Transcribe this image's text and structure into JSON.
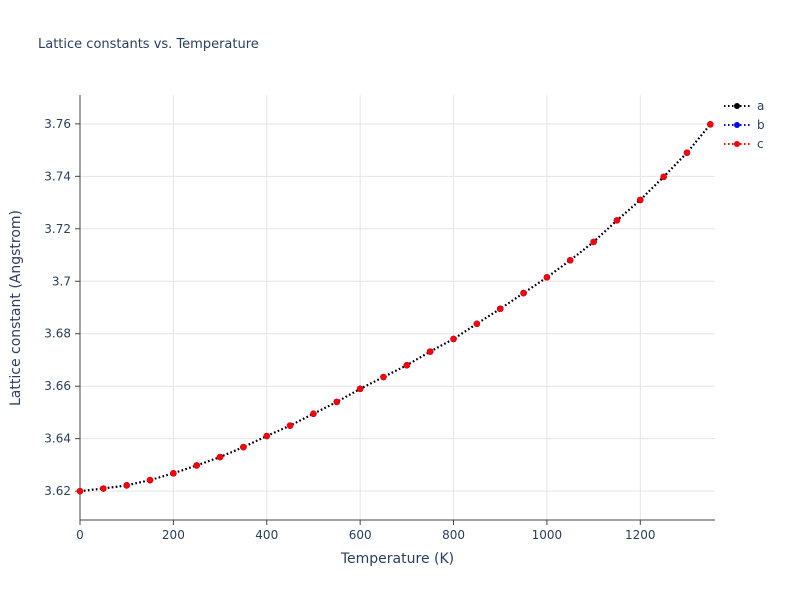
{
  "chart": {
    "title": "Lattice constants vs. Temperature",
    "xlabel": "Temperature (K)",
    "ylabel": "Lattice constant (Angstrom)"
  },
  "colors": {
    "background": "#ffffff",
    "text": "#2a3f5f",
    "grid": "#e5e5e5",
    "axis": "#444444"
  },
  "chart_data": {
    "type": "line",
    "title": "Lattice constants vs. Temperature",
    "xlabel": "Temperature (K)",
    "ylabel": "Lattice constant (Angstrom)",
    "xlim": [
      0,
      1360
    ],
    "ylim": [
      3.609,
      3.771
    ],
    "x_ticks": [
      0,
      200,
      400,
      600,
      800,
      1000,
      1200
    ],
    "y_ticks": [
      3.62,
      3.64,
      3.66,
      3.68,
      3.7,
      3.72,
      3.74,
      3.76
    ],
    "grid": true,
    "legend_position": "top-right",
    "line_style": "dotted",
    "marker": "circle",
    "x": [
      0,
      50,
      100,
      150,
      200,
      250,
      300,
      350,
      400,
      450,
      500,
      550,
      600,
      650,
      700,
      750,
      800,
      850,
      900,
      950,
      1000,
      1050,
      1100,
      1150,
      1200,
      1250,
      1300,
      1350
    ],
    "series": [
      {
        "name": "a",
        "color": "#000000",
        "values": [
          3.62,
          3.621,
          3.6222,
          3.6242,
          3.6268,
          3.6298,
          3.633,
          3.6368,
          3.641,
          3.645,
          3.6495,
          3.654,
          3.659,
          3.6635,
          3.668,
          3.6732,
          3.678,
          3.6838,
          3.6895,
          3.6955,
          3.7015,
          3.708,
          3.715,
          3.7232,
          3.731,
          3.7398,
          3.749,
          3.7598
        ]
      },
      {
        "name": "b",
        "color": "#0000ff",
        "values": [
          3.62,
          3.621,
          3.6222,
          3.6242,
          3.6268,
          3.6298,
          3.633,
          3.6368,
          3.641,
          3.645,
          3.6495,
          3.654,
          3.659,
          3.6635,
          3.668,
          3.6732,
          3.678,
          3.6838,
          3.6895,
          3.6955,
          3.7015,
          3.708,
          3.715,
          3.7232,
          3.731,
          3.7398,
          3.749,
          3.7598
        ]
      },
      {
        "name": "c",
        "color": "#ff0000",
        "values": [
          3.62,
          3.621,
          3.6222,
          3.6242,
          3.6268,
          3.6298,
          3.633,
          3.6368,
          3.641,
          3.645,
          3.6495,
          3.654,
          3.659,
          3.6635,
          3.668,
          3.6732,
          3.678,
          3.6838,
          3.6895,
          3.6955,
          3.7015,
          3.708,
          3.715,
          3.7232,
          3.731,
          3.7398,
          3.749,
          3.7598
        ]
      }
    ]
  }
}
